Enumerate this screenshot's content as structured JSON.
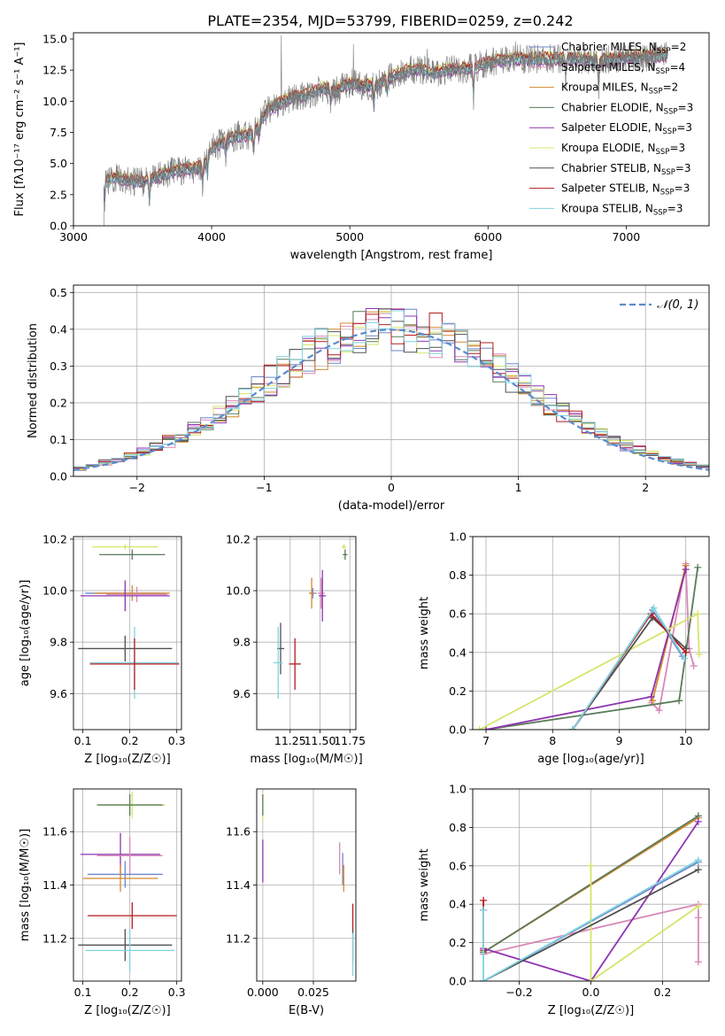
{
  "figure": {
    "title": "PLATE=2354, MJD=53799, FIBERID=0259, z=0.242"
  },
  "colors": {
    "Chabrier MILES": "#6f86c8",
    "Salpeter MILES": "#d889b8",
    "Kroupa MILES": "#d4882c",
    "Chabrier ELODIE": "#5a7a5a",
    "Salpeter ELODIE": "#8e35b0",
    "Kroupa ELODIE": "#d7e46a",
    "Chabrier STELIB": "#505050",
    "Salpeter STELIB": "#b31c1c",
    "Kroupa STELIB": "#7fd4e0",
    "normal_curve": "#5b8ad0",
    "grid": "#b0b0b0"
  },
  "chart_data": [
    {
      "id": "spectrum",
      "type": "line",
      "title": "PLATE=2354, MJD=53799, FIBERID=0259, z=0.242",
      "xlabel": "wavelength [Angstrom, rest frame]",
      "ylabel": "Flux [fλ10⁻¹⁷ erg cm⁻² s⁻¹ A⁻¹]",
      "xlim": [
        3000,
        7600
      ],
      "ylim": [
        0,
        15.5
      ],
      "xticks": [
        3000,
        4000,
        5000,
        6000,
        7000
      ],
      "yticks": [
        0.0,
        2.5,
        5.0,
        7.5,
        10.0,
        12.5,
        15.0
      ],
      "grid": false,
      "legend_position": "top-right",
      "continuum": {
        "x": [
          3220,
          3300,
          3400,
          3500,
          3600,
          3700,
          3800,
          3900,
          3950,
          4000,
          4100,
          4200,
          4300,
          4400,
          4500,
          4600,
          4700,
          4800,
          4900,
          5000,
          5100,
          5200,
          5300,
          5400,
          5500,
          5600,
          5700,
          5800,
          5900,
          6000,
          6200,
          6400,
          6600,
          6800,
          7000,
          7200,
          7300
        ],
        "y": [
          3.4,
          3.9,
          3.6,
          3.5,
          3.9,
          4.3,
          4.5,
          4.6,
          5.0,
          6.2,
          6.8,
          7.3,
          7.3,
          9.2,
          9.9,
          10.4,
          10.5,
          11.0,
          10.8,
          11.5,
          11.2,
          11.3,
          12.0,
          12.4,
          12.6,
          12.2,
          12.5,
          12.6,
          12.7,
          13.1,
          13.4,
          13.4,
          13.4,
          13.3,
          13.5,
          13.6,
          13.7
        ]
      },
      "spectral_features": [
        {
          "x": 3225,
          "depth": 1.8
        },
        {
          "x": 3550,
          "depth": 2.5
        },
        {
          "x": 3935,
          "depth": 2.2
        },
        {
          "x": 3970,
          "depth": 2.0
        },
        {
          "x": 4102,
          "depth": 1.5
        },
        {
          "x": 4304,
          "depth": 1.8
        },
        {
          "x": 4341,
          "depth": 1.4
        },
        {
          "x": 4861,
          "depth": 1.6
        },
        {
          "x": 5175,
          "depth": 2.6
        },
        {
          "x": 5270,
          "depth": 1.8
        },
        {
          "x": 5895,
          "depth": 3.0
        },
        {
          "x": 6563,
          "depth": 1.5
        },
        {
          "x": 6800,
          "depth": 3.5
        }
      ],
      "spectral_spikes": [
        {
          "x": 4505,
          "height": 15.3
        },
        {
          "x": 5025,
          "height": 14.6
        },
        {
          "x": 5560,
          "height": 14.2
        },
        {
          "x": 6200,
          "height": 14.8
        },
        {
          "x": 6730,
          "height": 14.3
        },
        {
          "x": 7210,
          "height": 14.5
        }
      ],
      "model_offsets": [
        0.0,
        0.25,
        -0.2,
        0.15,
        -0.3,
        0.35,
        -0.1,
        0.3,
        -0.15
      ],
      "legend": [
        {
          "label": "Chabrier MILES, N",
          "sub": "SSP",
          "suffix": "=2",
          "key": "Chabrier MILES"
        },
        {
          "label": "Salpeter MILES, N",
          "sub": "SSP",
          "suffix": "=4",
          "key": "Salpeter MILES"
        },
        {
          "label": "Kroupa MILES, N",
          "sub": "SSP",
          "suffix": "=2",
          "key": "Kroupa MILES"
        },
        {
          "label": "Chabrier ELODIE, N",
          "sub": "SSP",
          "suffix": "=3",
          "key": "Chabrier ELODIE"
        },
        {
          "label": "Salpeter ELODIE, N",
          "sub": "SSP",
          "suffix": "=3",
          "key": "Salpeter ELODIE"
        },
        {
          "label": "Kroupa ELODIE, N",
          "sub": "SSP",
          "suffix": "=3",
          "key": "Kroupa ELODIE"
        },
        {
          "label": "Chabrier STELIB, N",
          "sub": "SSP",
          "suffix": "=3",
          "key": "Chabrier STELIB"
        },
        {
          "label": "Salpeter STELIB, N",
          "sub": "SSP",
          "suffix": "=3",
          "key": "Salpeter STELIB"
        },
        {
          "label": "Kroupa STELIB, N",
          "sub": "SSP",
          "suffix": "=3",
          "key": "Kroupa STELIB"
        }
      ]
    },
    {
      "id": "residuals",
      "type": "area",
      "xlabel": "(data-model)/error",
      "ylabel": "Normed distribution",
      "xlim": [
        -2.5,
        2.5
      ],
      "ylim": [
        0,
        0.52
      ],
      "xticks": [
        -2,
        -1,
        0,
        1,
        2
      ],
      "xticklabels": [
        "−2",
        "−1",
        "0",
        "1",
        "2"
      ],
      "yticks": [
        0.0,
        0.1,
        0.2,
        0.3,
        0.4,
        0.5
      ],
      "grid": true,
      "legend_position": "top-right",
      "normal_label": "𝒩(0, 1)",
      "bins": {
        "start": -2.5,
        "width": 0.1,
        "count": 50
      },
      "base_shape": [
        0.022,
        0.03,
        0.038,
        0.046,
        0.056,
        0.067,
        0.08,
        0.095,
        0.111,
        0.13,
        0.15,
        0.17,
        0.192,
        0.215,
        0.238,
        0.261,
        0.284,
        0.306,
        0.327,
        0.346,
        0.362,
        0.376,
        0.387,
        0.395,
        0.399,
        0.401,
        0.398,
        0.392,
        0.382,
        0.368,
        0.352,
        0.333,
        0.312,
        0.29,
        0.267,
        0.243,
        0.22,
        0.197,
        0.175,
        0.154,
        0.134,
        0.116,
        0.099,
        0.084,
        0.071,
        0.059,
        0.049,
        0.04,
        0.033,
        0.027
      ],
      "series_names": [
        "Chabrier MILES",
        "Salpeter MILES",
        "Kroupa MILES",
        "Chabrier ELODIE",
        "Salpeter ELODIE",
        "Kroupa ELODIE",
        "Chabrier STELIB",
        "Salpeter STELIB",
        "Kroupa STELIB"
      ]
    },
    {
      "id": "age_vs_Z",
      "type": "scatter",
      "xlabel": "Z [log₁₀(Z/Z☉)]",
      "ylabel": "age  [log₁₀(age/yr)]",
      "xlim": [
        0.08,
        0.31
      ],
      "ylim": [
        9.46,
        10.21
      ],
      "xticks": [
        0.1,
        0.2,
        0.3
      ],
      "yticks": [
        9.6,
        9.8,
        10.0,
        10.2
      ],
      "grid": true,
      "points": [
        {
          "series": "Kroupa ELODIE",
          "x": 0.19,
          "y": 10.17,
          "xerr": 0.07,
          "yerr": 0.01
        },
        {
          "series": "Chabrier ELODIE",
          "x": 0.205,
          "y": 10.14,
          "xerr": 0.07,
          "yerr": 0.02
        },
        {
          "series": "Chabrier MILES",
          "x": 0.19,
          "y": 9.99,
          "xerr": 0.085,
          "yerr": 0.02
        },
        {
          "series": "Kroupa MILES",
          "x": 0.205,
          "y": 9.99,
          "xerr": 0.08,
          "yerr": 0.03
        },
        {
          "series": "Salpeter MILES",
          "x": 0.215,
          "y": 9.985,
          "xerr": 0.065,
          "yerr": 0.03
        },
        {
          "series": "Salpeter ELODIE",
          "x": 0.19,
          "y": 9.98,
          "xerr": 0.095,
          "yerr": 0.06
        },
        {
          "series": "Chabrier STELIB",
          "x": 0.19,
          "y": 9.775,
          "xerr": 0.1,
          "yerr": 0.05
        },
        {
          "series": "Kroupa STELIB",
          "x": 0.21,
          "y": 9.72,
          "xerr": 0.095,
          "yerr": 0.14
        },
        {
          "series": "Salpeter STELIB",
          "x": 0.21,
          "y": 9.715,
          "xerr": 0.095,
          "yerr": 0.1
        }
      ]
    },
    {
      "id": "age_vs_mass",
      "type": "scatter",
      "xlabel": "mass [log₁₀(M/M☉)]",
      "ylabel": "",
      "xlim": [
        10.97,
        11.8
      ],
      "ylim": [
        9.46,
        10.21
      ],
      "xticks": [
        11.25,
        11.5,
        11.75
      ],
      "xticklabels": [
        "11.25",
        "11.50",
        "11.75"
      ],
      "yticks": [
        9.6,
        9.8,
        10.0,
        10.2
      ],
      "grid": true,
      "points": [
        {
          "series": "Kroupa ELODIE",
          "x": 11.7,
          "y": 10.17,
          "xerr": 0.02,
          "yerr": 0.01
        },
        {
          "series": "Chabrier ELODIE",
          "x": 11.71,
          "y": 10.14,
          "xerr": 0.02,
          "yerr": 0.02
        },
        {
          "series": "Chabrier MILES",
          "x": 11.44,
          "y": 9.99,
          "xerr": 0.03,
          "yerr": 0.02
        },
        {
          "series": "Kroupa MILES",
          "x": 11.43,
          "y": 9.99,
          "xerr": 0.02,
          "yerr": 0.06
        },
        {
          "series": "Salpeter MILES",
          "x": 11.51,
          "y": 9.99,
          "xerr": 0.03,
          "yerr": 0.06
        },
        {
          "series": "Salpeter ELODIE",
          "x": 11.52,
          "y": 9.98,
          "xerr": 0.03,
          "yerr": 0.1
        },
        {
          "series": "Chabrier STELIB",
          "x": 11.17,
          "y": 9.775,
          "xerr": 0.03,
          "yerr": 0.1
        },
        {
          "series": "Kroupa STELIB",
          "x": 11.15,
          "y": 9.72,
          "xerr": 0.04,
          "yerr": 0.14
        },
        {
          "series": "Salpeter STELIB",
          "x": 11.29,
          "y": 9.715,
          "xerr": 0.05,
          "yerr": 0.1
        }
      ]
    },
    {
      "id": "mass_weight_vs_age",
      "type": "line",
      "xlabel": "age  [log₁₀(age/yr)]",
      "ylabel": "mass weight",
      "xlim": [
        6.8,
        10.35
      ],
      "ylim": [
        0,
        1
      ],
      "xticks": [
        7,
        8,
        9,
        10
      ],
      "yticks": [
        0.0,
        0.2,
        0.4,
        0.6,
        0.8,
        1.0
      ],
      "grid": true,
      "series": [
        {
          "name": "Chabrier MILES",
          "x": [
            8.3,
            9.5,
            9.95
          ],
          "y": [
            0.0,
            0.62,
            0.38
          ]
        },
        {
          "name": "Salpeter MILES",
          "x": [
            9.48,
            9.6,
            10.0,
            10.05,
            10.12
          ],
          "y": [
            0.14,
            0.1,
            0.86,
            0.42,
            0.33
          ]
        },
        {
          "name": "Kroupa MILES",
          "x": [
            9.5,
            10.0
          ],
          "y": [
            0.15,
            0.85
          ]
        },
        {
          "name": "Chabrier ELODIE",
          "x": [
            7.0,
            9.9,
            10.18
          ],
          "y": [
            0.0,
            0.15,
            0.84
          ]
        },
        {
          "name": "Salpeter ELODIE",
          "x": [
            7.0,
            9.48,
            10.0
          ],
          "y": [
            0.0,
            0.17,
            0.83
          ]
        },
        {
          "name": "Kroupa ELODIE",
          "x": [
            6.9,
            10.18,
            10.2
          ],
          "y": [
            0.0,
            0.6,
            0.39
          ]
        },
        {
          "name": "Chabrier STELIB",
          "x": [
            8.3,
            9.5,
            10.0
          ],
          "y": [
            0.0,
            0.58,
            0.42
          ]
        },
        {
          "name": "Salpeter STELIB",
          "x": [
            8.3,
            9.48,
            10.0
          ],
          "y": [
            0.0,
            0.6,
            0.4
          ]
        },
        {
          "name": "Kroupa STELIB",
          "x": [
            8.3,
            9.52,
            9.98
          ],
          "y": [
            0.0,
            0.63,
            0.37
          ]
        }
      ]
    },
    {
      "id": "mass_vs_Z",
      "type": "scatter",
      "xlabel": "Z [log₁₀(Z/Z☉)]",
      "ylabel": "mass [log₁₀(M/M☉)]",
      "xlim": [
        0.08,
        0.31
      ],
      "ylim": [
        11.04,
        11.76
      ],
      "xticks": [
        0.1,
        0.2,
        0.3
      ],
      "yticks": [
        11.2,
        11.4,
        11.6
      ],
      "grid": true,
      "points": [
        {
          "series": "Kroupa ELODIE",
          "x": 0.205,
          "y": 11.7,
          "xerr": 0.07,
          "yerr": 0.05
        },
        {
          "series": "Chabrier ELODIE",
          "x": 0.2,
          "y": 11.7,
          "xerr": 0.07,
          "yerr": 0.04
        },
        {
          "series": "Salpeter ELODIE",
          "x": 0.18,
          "y": 11.515,
          "xerr": 0.085,
          "yerr": 0.08
        },
        {
          "series": "Salpeter MILES",
          "x": 0.2,
          "y": 11.51,
          "xerr": 0.07,
          "yerr": 0.07
        },
        {
          "series": "Chabrier MILES",
          "x": 0.19,
          "y": 11.44,
          "xerr": 0.08,
          "yerr": 0.05
        },
        {
          "series": "Kroupa MILES",
          "x": 0.18,
          "y": 11.425,
          "xerr": 0.08,
          "yerr": 0.05
        },
        {
          "series": "Salpeter STELIB",
          "x": 0.205,
          "y": 11.285,
          "xerr": 0.095,
          "yerr": 0.05
        },
        {
          "series": "Chabrier STELIB",
          "x": 0.19,
          "y": 11.175,
          "xerr": 0.1,
          "yerr": 0.06
        },
        {
          "series": "Kroupa STELIB",
          "x": 0.2,
          "y": 11.155,
          "xerr": 0.095,
          "yerr": 0.08
        }
      ]
    },
    {
      "id": "mass_vs_ebv",
      "type": "scatter",
      "xlabel": "E(B-V)",
      "ylabel": "",
      "xlim": [
        -0.003,
        0.046
      ],
      "ylim": [
        11.04,
        11.76
      ],
      "xticks": [
        0.0,
        0.025
      ],
      "xticklabels": [
        "0.000",
        "0.025"
      ],
      "yticks": [
        11.2,
        11.4,
        11.6
      ],
      "grid": true,
      "points": [
        {
          "series": "Kroupa ELODIE",
          "x": 0.0,
          "y": 11.69,
          "xerr": 0.0,
          "yerr": 0.05
        },
        {
          "series": "Chabrier ELODIE",
          "x": 0.0,
          "y": 11.7,
          "xerr": 0.0,
          "yerr": 0.04
        },
        {
          "series": "Salpeter ELODIE",
          "x": 0.0,
          "y": 11.49,
          "xerr": 0.0,
          "yerr": 0.08
        },
        {
          "series": "Salpeter MILES",
          "x": 0.038,
          "y": 11.5,
          "xerr": 0.0,
          "yerr": 0.06
        },
        {
          "series": "Chabrier MILES",
          "x": 0.0395,
          "y": 11.46,
          "xerr": 0.0,
          "yerr": 0.06
        },
        {
          "series": "Kroupa MILES",
          "x": 0.04,
          "y": 11.425,
          "xerr": 0.0,
          "yerr": 0.05
        },
        {
          "series": "Salpeter STELIB",
          "x": 0.0445,
          "y": 11.28,
          "xerr": 0.0,
          "yerr": 0.05
        },
        {
          "series": "Chabrier STELIB",
          "x": 0.0445,
          "y": 11.175,
          "xerr": 0.0,
          "yerr": 0.06
        },
        {
          "series": "Kroupa STELIB",
          "x": 0.0445,
          "y": 11.14,
          "xerr": 0.0,
          "yerr": 0.08
        }
      ]
    },
    {
      "id": "mass_weight_vs_Z",
      "type": "line",
      "xlabel": "Z [log₁₀(Z/Z☉)]",
      "ylabel": "mass weight",
      "xlim": [
        -0.33,
        0.33
      ],
      "ylim": [
        0,
        1
      ],
      "xticks": [
        -0.2,
        0.0,
        0.2
      ],
      "xticklabels": [
        "−0.2",
        "0.0",
        "0.2"
      ],
      "yticks": [
        0.0,
        0.2,
        0.4,
        0.6,
        0.8,
        1.0
      ],
      "grid": true,
      "series": [
        {
          "name": "Chabrier MILES",
          "x": [
            -0.3,
            0.3
          ],
          "y": [
            0.0,
            0.62
          ]
        },
        {
          "name": "Salpeter MILES",
          "x": [
            -0.3,
            0.3,
            0.3,
            0.3
          ],
          "y": [
            0.14,
            0.4,
            0.33,
            0.1
          ]
        },
        {
          "name": "Kroupa MILES",
          "x": [
            -0.3,
            0.3
          ],
          "y": [
            0.15,
            0.85
          ]
        },
        {
          "name": "Chabrier ELODIE",
          "x": [
            -0.3,
            0.3
          ],
          "y": [
            0.15,
            0.86
          ]
        },
        {
          "name": "Salpeter ELODIE",
          "x": [
            -0.3,
            0.0,
            0.3
          ],
          "y": [
            0.17,
            0.0,
            0.83
          ]
        },
        {
          "name": "Kroupa ELODIE",
          "x": [
            0.0,
            0.0,
            0.3
          ],
          "y": [
            0.6,
            0.0,
            0.39
          ]
        },
        {
          "name": "Chabrier STELIB",
          "x": [
            -0.3,
            0.3
          ],
          "y": [
            0.0,
            0.58
          ]
        },
        {
          "name": "Salpeter STELIB",
          "x": [
            -0.3,
            -0.3,
            -0.3
          ],
          "y": [
            0.42,
            0.37,
            0.16
          ]
        },
        {
          "name": "Kroupa STELIB",
          "x": [
            -0.3,
            -0.3,
            0.3
          ],
          "y": [
            0.37,
            0.0,
            0.63
          ]
        }
      ]
    }
  ]
}
